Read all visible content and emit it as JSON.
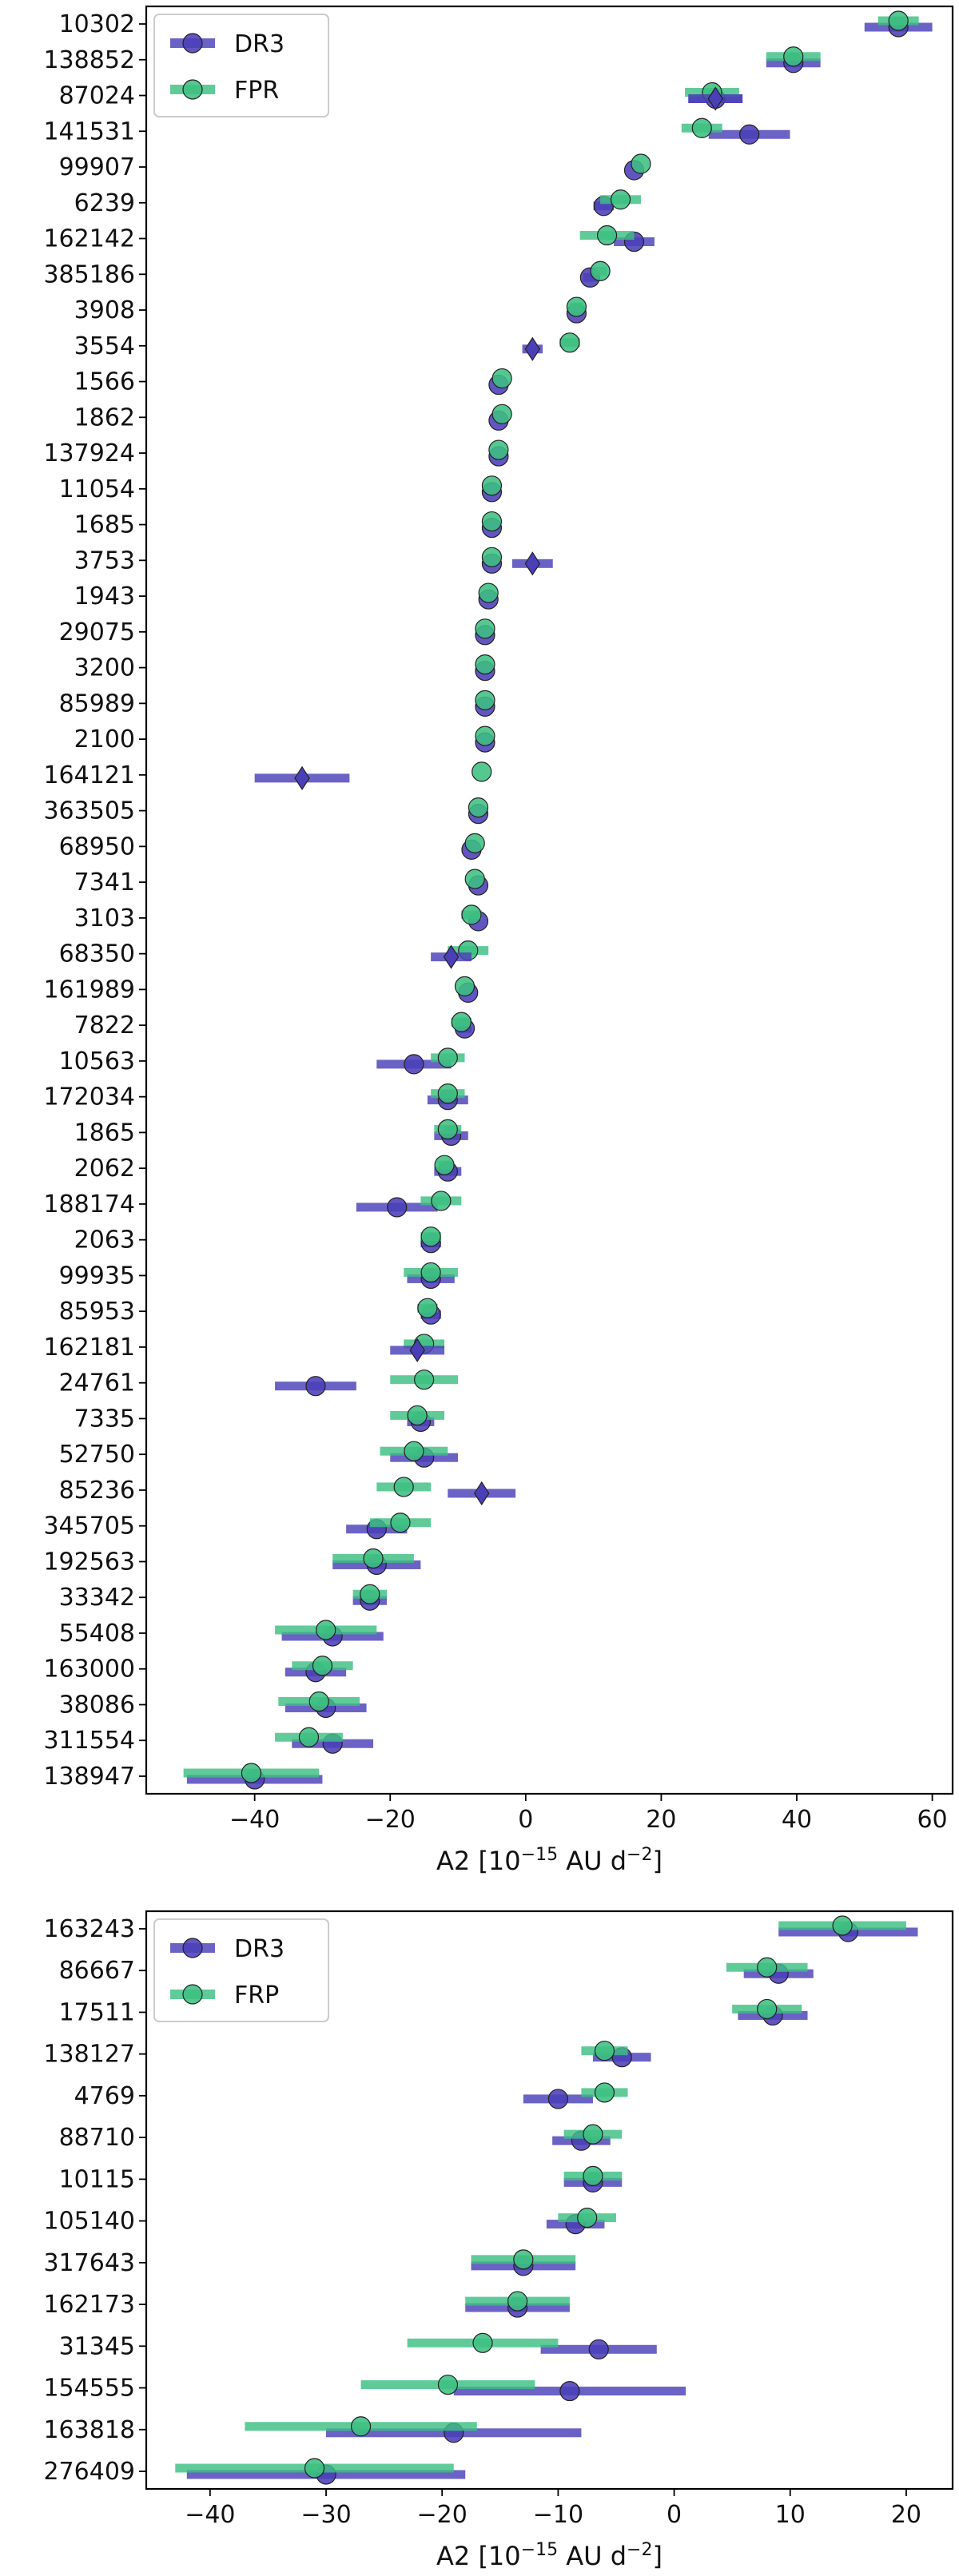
{
  "colors": {
    "DR3": "#4B3FB8",
    "FPR": "#3DBF82"
  },
  "chart_data": [
    {
      "type": "scatter",
      "orientation": "horizontal errorbar",
      "title": "",
      "xlabel": "A2 [10",
      "xlabel_sup": "−15",
      "xlabel_unit": " AU d",
      "xlabel_sup2": "−2",
      "xlabel_end": "]",
      "xlim": [
        -56,
        63
      ],
      "xticks": [
        -40,
        -20,
        0,
        20,
        40,
        60
      ],
      "xtick_labels": [
        "−40",
        "−20",
        "0",
        "20",
        "40",
        "60"
      ],
      "legend": {
        "position": "top-left",
        "entries": [
          "DR3",
          "FPR"
        ]
      },
      "categories": [
        "10302",
        "138852",
        "87024",
        "141531",
        "99907",
        "6239",
        "162142",
        "385186",
        "3908",
        "3554",
        "1566",
        "1862",
        "137924",
        "11054",
        "1685",
        "3753",
        "1943",
        "29075",
        "3200",
        "85989",
        "2100",
        "164121",
        "363505",
        "68950",
        "7341",
        "3103",
        "68350",
        "161989",
        "7822",
        "10563",
        "172034",
        "1865",
        "2062",
        "188174",
        "2063",
        "99935",
        "85953",
        "162181",
        "24761",
        "7335",
        "52750",
        "85236",
        "345705",
        "192563",
        "33342",
        "55408",
        "163000",
        "38086",
        "311554",
        "138947"
      ],
      "series": [
        {
          "name": "DR3",
          "values": [
            55,
            39.5,
            28,
            33,
            16,
            11.5,
            16,
            9.5,
            7.5,
            null,
            -4,
            -4,
            -4,
            -5,
            -5,
            -5,
            -5.5,
            -6,
            -6,
            -6,
            -6,
            null,
            -7,
            -8,
            -7,
            -7,
            null,
            -8.5,
            -9,
            -16.5,
            -11.5,
            -11,
            -11.5,
            -19,
            -14,
            -14,
            -14,
            null,
            -31,
            -15.5,
            -15,
            null,
            -22,
            -22,
            -23,
            -28.5,
            -31,
            -29.5,
            -28.5,
            -40
          ],
          "errors": [
            5,
            4,
            4,
            6,
            0.5,
            1.5,
            3,
            1,
            0.5,
            null,
            0.5,
            0.5,
            0.5,
            0.5,
            0.5,
            0.5,
            0.5,
            0.5,
            0.5,
            0.5,
            0.5,
            null,
            0.5,
            0.5,
            0.5,
            0.5,
            null,
            0.5,
            1,
            5.5,
            3,
            2.5,
            2,
            6,
            1.5,
            3.5,
            1.5,
            null,
            6,
            2,
            5,
            null,
            4.5,
            6.5,
            2.5,
            7.5,
            4.5,
            6,
            6,
            10
          ]
        },
        {
          "name": "FPR",
          "values": [
            55,
            39.5,
            27.5,
            26,
            17,
            14,
            12,
            11,
            7.5,
            6.5,
            -3.5,
            -3.5,
            -4,
            -5,
            -5,
            -5,
            -5.5,
            -6,
            -6,
            -6,
            -6,
            -6.5,
            -7,
            -7.5,
            -7.5,
            -8,
            -8.5,
            -9,
            -9.5,
            -11.5,
            -11.5,
            -11.5,
            -12,
            -12.5,
            -14,
            -14,
            -14.5,
            -15,
            -15,
            -16,
            -16.5,
            -18,
            -18.5,
            -22.5,
            -23,
            -29.5,
            -30,
            -30.5,
            -32,
            -40.5
          ],
          "errors": [
            3,
            4,
            4,
            3,
            0.5,
            3,
            4,
            1,
            1,
            1.5,
            0.5,
            0.5,
            0.5,
            0.5,
            0.5,
            0.5,
            0.5,
            0.5,
            0.5,
            0.5,
            0.5,
            0.5,
            0.5,
            0.5,
            0.5,
            1.5,
            3,
            0.5,
            1.5,
            2.5,
            2.5,
            2,
            1,
            3,
            1.5,
            4,
            1.5,
            3,
            5,
            4,
            5,
            4,
            4.5,
            6,
            2.5,
            7.5,
            4.5,
            6,
            5,
            10
          ]
        }
      ],
      "diamond_markers": [
        {
          "category": "87024",
          "value": 28,
          "error": 4
        },
        {
          "category": "3554",
          "value": 1,
          "error": 1.5
        },
        {
          "category": "3753",
          "value": 1,
          "error": 3
        },
        {
          "category": "164121",
          "value": -33,
          "error": 7
        },
        {
          "category": "68350",
          "value": -11,
          "error": 3
        },
        {
          "category": "162181",
          "value": -16,
          "error": 4
        },
        {
          "category": "85236",
          "value": -6.5,
          "error": 5
        }
      ]
    },
    {
      "type": "scatter",
      "orientation": "horizontal errorbar",
      "title": "",
      "xlabel": "A2 [10",
      "xlabel_sup": "−15",
      "xlabel_unit": " AU d",
      "xlabel_sup2": "−2",
      "xlabel_end": "]",
      "xlim": [
        -45.5,
        24
      ],
      "xticks": [
        -40,
        -30,
        -20,
        -10,
        0,
        10,
        20
      ],
      "xtick_labels": [
        "−40",
        "−30",
        "−20",
        "−10",
        "0",
        "10",
        "20"
      ],
      "legend": {
        "position": "top-left",
        "entries": [
          "DR3",
          "FRP"
        ]
      },
      "categories": [
        "163243",
        "86667",
        "17511",
        "138127",
        "4769",
        "88710",
        "10115",
        "105140",
        "317643",
        "162173",
        "31345",
        "154555",
        "163818",
        "276409"
      ],
      "series": [
        {
          "name": "DR3",
          "values": [
            15,
            9,
            8.5,
            -4.5,
            -10,
            -8,
            -7,
            -8.5,
            -13,
            -13.5,
            -6.5,
            -9,
            -19,
            -30
          ],
          "errors": [
            6,
            3,
            3,
            2.5,
            3,
            2.5,
            2.5,
            2.5,
            4.5,
            4.5,
            5,
            10,
            11,
            12
          ]
        },
        {
          "name": "FRP",
          "values": [
            14.5,
            8,
            8,
            -6,
            -6,
            -7,
            -7,
            -7.5,
            -13,
            -13.5,
            -16.5,
            -19.5,
            -27,
            -31
          ],
          "errors": [
            5.5,
            3.5,
            3,
            2,
            2,
            2.5,
            2.5,
            2.5,
            4.5,
            4.5,
            6.5,
            7.5,
            10,
            12
          ]
        }
      ]
    }
  ]
}
